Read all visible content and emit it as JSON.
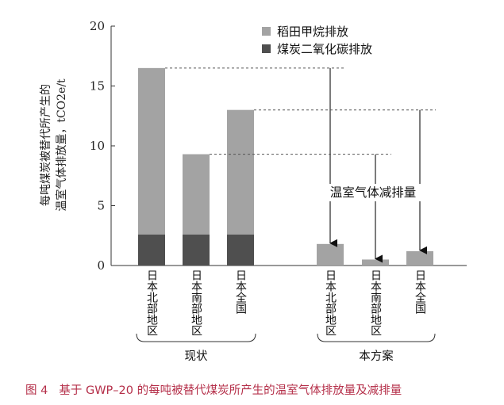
{
  "chart_data": {
    "type": "bar",
    "stacked": true,
    "ylabel_line1": "每吨煤炭被替代所产生的",
    "ylabel_line2": "温室气体排放量，tCO2e/t",
    "ylim": [
      0,
      20
    ],
    "yticks": [
      0,
      5,
      10,
      15,
      20
    ],
    "legend_position": "top-right",
    "series": [
      {
        "name": "煤炭二氧化碳排放",
        "color": "#4f4f4f",
        "values": [
          2.6,
          2.6,
          2.6,
          0,
          0,
          0
        ]
      },
      {
        "name": "稻田甲烷排放",
        "color": "#a3a3a3",
        "values": [
          13.9,
          6.7,
          10.4,
          1.8,
          0.5,
          1.2
        ]
      }
    ],
    "categories": [
      "日本北部地区",
      "日本南部地区",
      "日本全国",
      "日本北部地区",
      "日本南部地区",
      "日本全国"
    ],
    "groups": [
      {
        "label": "现状",
        "members": [
          0,
          1,
          2
        ]
      },
      {
        "label": "本方案",
        "members": [
          3,
          4,
          5
        ]
      }
    ],
    "annotation": "温室气体减排量",
    "reduction_arrows": [
      {
        "from_value": 16.5,
        "to_category": 3,
        "to_value": 1.8
      },
      {
        "from_value": 9.3,
        "to_category": 4,
        "to_value": 0.5
      },
      {
        "from_value": 13.0,
        "to_category": 5,
        "to_value": 1.2
      }
    ]
  },
  "caption": {
    "number": "图 4",
    "text": "基于 GWP–20 的每吨被替代煤炭所产生的温室气体排放量及减排量"
  }
}
